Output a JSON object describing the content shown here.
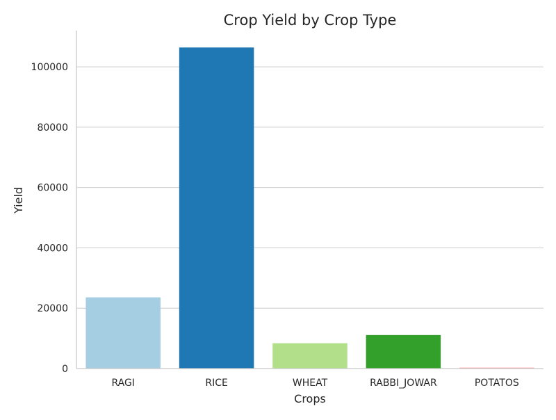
{
  "chart_data": {
    "type": "bar",
    "title": "Crop Yield by Crop Type",
    "xlabel": "Crops",
    "ylabel": "Yield",
    "categories": [
      "RAGI",
      "RICE",
      "WHEAT",
      "RABBI_JOWAR",
      "POTATOS"
    ],
    "values": [
      23600,
      106400,
      8400,
      11100,
      300
    ],
    "colors": [
      "#a6cee3",
      "#1f78b4",
      "#b2df8a",
      "#33a02c",
      "#fb9a99"
    ],
    "ylim": [
      0,
      112000
    ],
    "yticks": [
      0,
      20000,
      40000,
      60000,
      80000,
      100000
    ],
    "ytick_labels": [
      "0",
      "20000",
      "40000",
      "60000",
      "80000",
      "100000"
    ],
    "grid": "horizontal",
    "style": {
      "grid_color": "#cccccc",
      "spine_color": "#c8c8c8",
      "text_color": "#262626"
    }
  }
}
